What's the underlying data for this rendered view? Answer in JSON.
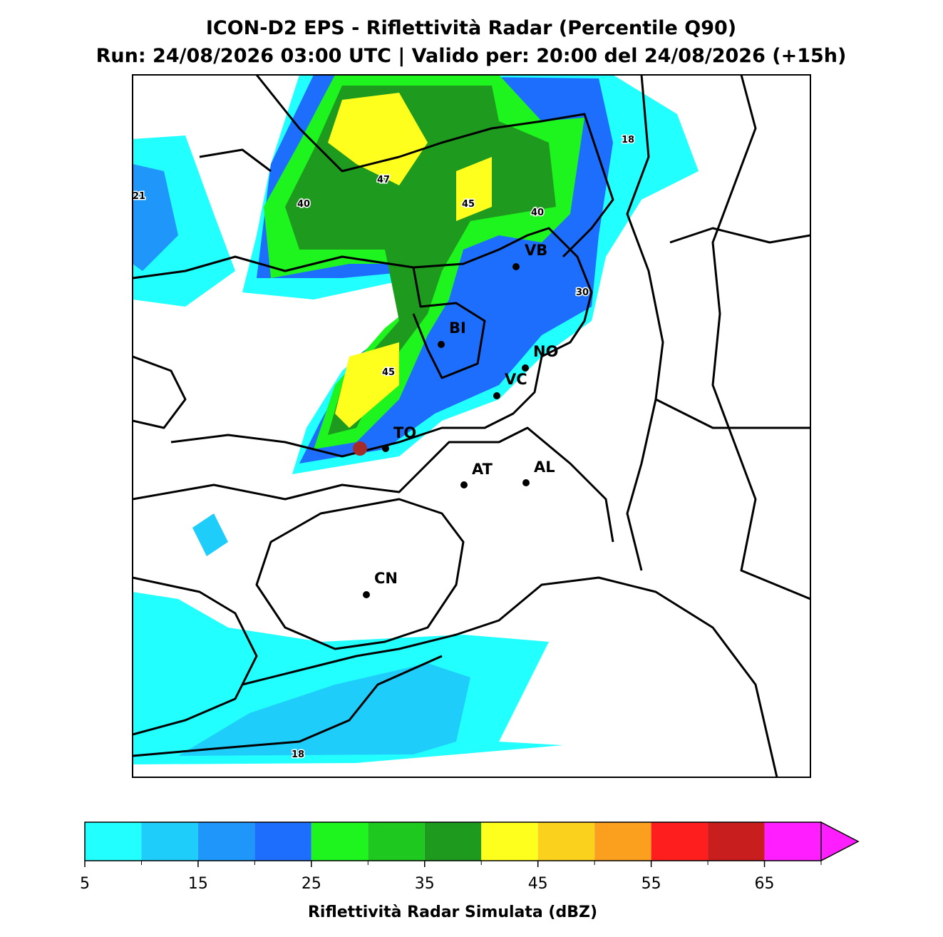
{
  "title": "ICON-D2 EPS - Riflettività Radar (Percentile Q90)",
  "subtitle": "Run: 24/08/2026 03:00 UTC | Valido per: 20:00 del 24/08/2026 (+15h)",
  "cities": [
    "VB",
    "BI",
    "NO",
    "VC",
    "TO",
    "AT",
    "AL",
    "CN"
  ],
  "contour_labels": [
    18,
    21,
    40,
    47,
    45,
    40,
    30,
    45,
    18
  ],
  "colorbar": {
    "bounds": [
      5,
      10,
      15,
      20,
      25,
      30,
      35,
      40,
      45,
      50,
      55,
      60,
      65,
      70
    ],
    "colors": [
      "#22ffff",
      "#1ecdfa",
      "#1e96fa",
      "#1e6efe",
      "#1ef51e",
      "#1ec81e",
      "#1e9b1e",
      "#ffff1e",
      "#fad21e",
      "#faa01e",
      "#ff1e1e",
      "#c81e1e",
      "#ff1eff"
    ],
    "ticks": [
      5,
      15,
      25,
      35,
      45,
      55,
      65
    ],
    "extend": "max",
    "label": "Riflettività Radar Simulata (dBZ)"
  }
}
